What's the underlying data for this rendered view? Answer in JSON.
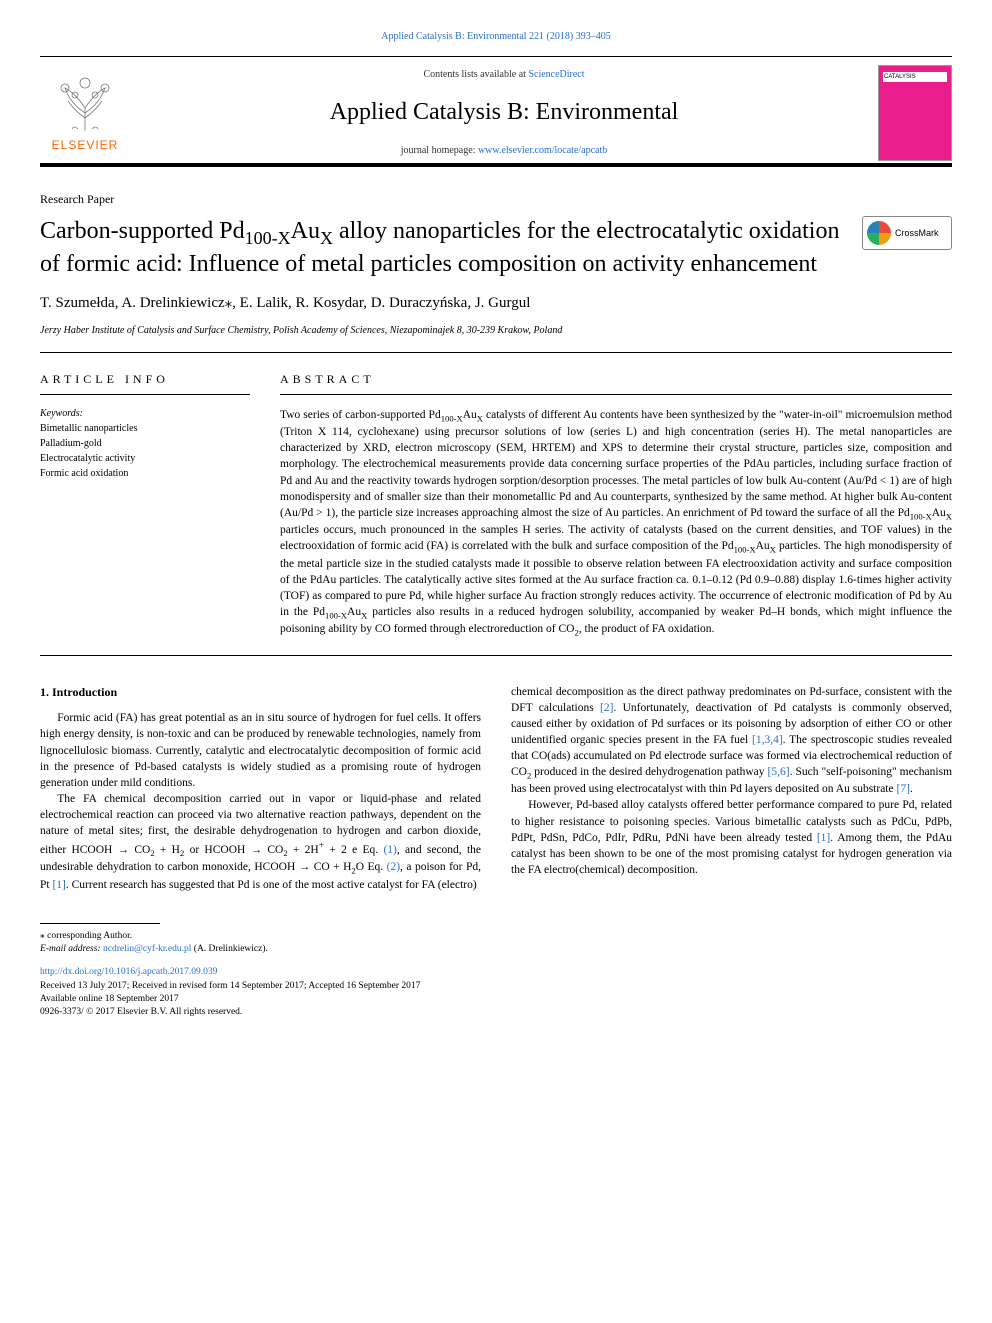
{
  "header": {
    "citation_link": "Applied Catalysis B: Environmental 221 (2018) 393–405",
    "contents_prefix": "Contents lists available at ",
    "contents_link": "ScienceDirect",
    "journal_name": "Applied Catalysis B: Environmental",
    "homepage_prefix": "journal homepage: ",
    "homepage_url": "www.elsevier.com/locate/apcatb",
    "publisher_name": "ELSEVIER",
    "cover_label": "CATALYSIS",
    "crossmark_label": "CrossMark"
  },
  "article": {
    "type": "Research Paper",
    "title_html": "Carbon-supported Pd<sub>100-X</sub>Au<sub>X</sub> alloy nanoparticles for the electrocatalytic oxidation of formic acid: Influence of metal particles composition on activity enhancement",
    "authors": "T. Szumełda, A. Drelinkiewicz⁎, E. Lalik, R. Kosydar, D. Duraczyńska, J. Gurgul",
    "affiliation": "Jerzy Haber Institute of Catalysis and Surface Chemistry, Polish Academy of Sciences, Niezapominajek 8, 30-239 Krakow, Poland"
  },
  "info": {
    "heading": "ARTICLE INFO",
    "keywords_label": "Keywords:",
    "keywords": [
      "Bimetallic nanoparticles",
      "Palladium-gold",
      "Electrocatalytic activity",
      "Formic acid oxidation"
    ]
  },
  "abstract": {
    "heading": "ABSTRACT",
    "text_html": "Two series of carbon-supported Pd<sub>100-X</sub>Au<sub>X</sub> catalysts of different Au contents have been synthesized by the \"water-in-oil\" microemulsion method (Triton X 114, cyclohexane) using precursor solutions of low (series L) and high concentration (series H). The metal nanoparticles are characterized by XRD, electron microscopy (SEM, HRTEM) and XPS to determine their crystal structure, particles size, composition and morphology. The electrochemical measurements provide data concerning surface properties of the PdAu particles, including surface fraction of Pd and Au and the reactivity towards hydrogen sorption/desorption processes. The metal particles of low bulk Au-content (Au/Pd < 1) are of high monodispersity and of smaller size than their monometallic Pd and Au counterparts, synthesized by the same method. At higher bulk Au-content (Au/Pd > 1), the particle size increases approaching almost the size of Au particles. An enrichment of Pd toward the surface of all the Pd<sub>100-X</sub>Au<sub>X</sub> particles occurs, much pronounced in the samples H series. The activity of catalysts (based on the current densities, and TOF values) in the electrooxidation of formic acid (FA) is correlated with the bulk and surface composition of the Pd<sub>100-X</sub>Au<sub>X</sub> particles. The high monodispersity of the metal particle size in the studied catalysts made it possible to observe relation between FA electrooxidation activity and surface composition of the PdAu particles. The catalytically active sites formed at the Au surface fraction ca. 0.1–0.12 (Pd 0.9–0.88) display 1.6-times higher activity (TOF) as compared to pure Pd, while higher surface Au fraction strongly reduces activity. The occurrence of electronic modification of Pd by Au in the Pd<sub>100-X</sub>Au<sub>X</sub> particles also results in a reduced hydrogen solubility, accompanied by weaker Pd–H bonds, which might influence the poisoning ability by CO formed through electroreduction of CO<sub>2</sub>, the product of FA oxidation."
  },
  "body": {
    "heading": "1. Introduction",
    "p1": "Formic acid (FA) has great potential as an in situ source of hydrogen for fuel cells. It offers high energy density, is non-toxic and can be produced by renewable technologies, namely from lignocellulosic biomass. Currently, catalytic and electrocatalytic decomposition of formic acid in the presence of Pd-based catalysts is widely studied as a promising route of hydrogen generation under mild conditions.",
    "p2_html": "The FA chemical decomposition carried out in vapor or liquid-phase and related electrochemical reaction can proceed via two alternative reaction pathways, dependent on the nature of metal sites; first, the desirable dehydrogenation to hydrogen and carbon dioxide, either HCOOH → CO<sub>2</sub> + H<sub>2</sub> or HCOOH → CO<sub>2</sub> + 2H<sup>+</sup> + 2 e Eq. <span class=\"eq-link\">(1)</span>, and second, the undesirable dehydration to carbon monoxide, HCOOH → CO + H<sub>2</sub>O Eq. <span class=\"eq-link\">(2)</span>, a poison for Pd, Pt <span class=\"ref-link\">[1]</span>. Current research has suggested that Pd is one of the most active catalyst for FA (electro)",
    "p3_html": "chemical decomposition as the direct pathway predominates on Pd-surface, consistent with the DFT calculations <span class=\"ref-link\">[2]</span>. Unfortunately, deactivation of Pd catalysts is commonly observed, caused either by oxidation of Pd surfaces or its poisoning by adsorption of either CO or other unidentified organic species present in the FA fuel <span class=\"ref-link\">[1,3,4]</span>. The spectroscopic studies revealed that CO(ads) accumulated on Pd electrode surface was formed via electrochemical reduction of CO<sub>2</sub> produced in the desired dehydrogenation pathway <span class=\"ref-link\">[5,6]</span>. Such \"self-poisoning\" mechanism has been proved using electrocatalyst with thin Pd layers deposited on Au substrate <span class=\"ref-link\">[7]</span>.",
    "p4_html": "However, Pd-based alloy catalysts offered better performance compared to pure Pd, related to higher resistance to poisoning species. Various bimetallic catalysts such as PdCu, PdPb, PdPt, PdSn, PdCo, PdIr, PdRu, PdNi have been already tested <span class=\"ref-link\">[1]</span>. Among them, the PdAu catalyst has been shown to be one of the most promising catalyst for hydrogen generation via the FA electro(chemical) decomposition."
  },
  "footer": {
    "corresponding": "⁎ corresponding Author.",
    "email_label": "E-mail address: ",
    "email": "ncdrelin@cyf-kr.edu.pl",
    "email_suffix": " (A. Drelinkiewicz).",
    "doi": "http://dx.doi.org/10.1016/j.apcatb.2017.09.039",
    "received": "Received 13 July 2017; Received in revised form 14 September 2017; Accepted 16 September 2017",
    "online": "Available online 18 September 2017",
    "copyright": "0926-3373/ © 2017 Elsevier B.V. All rights reserved."
  },
  "colors": {
    "link": "#2a6fc9",
    "elsevier_orange": "#ff6600",
    "cover_pink": "#e91e8c"
  }
}
